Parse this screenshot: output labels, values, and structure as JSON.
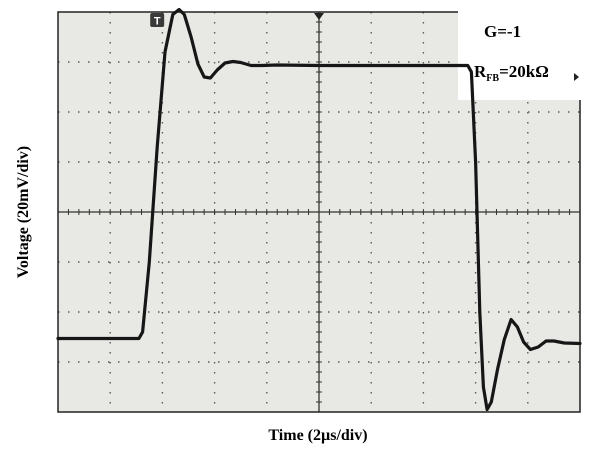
{
  "chart_data": {
    "type": "line",
    "title": "",
    "xlabel": "Time (2µs/div)",
    "ylabel": "Voltage (20mV/div)",
    "grid": true,
    "xlim": [
      0,
      10
    ],
    "ylim": [
      0,
      8
    ],
    "x_unit": "div",
    "y_unit": "div",
    "annotations": {
      "gain": "G=-1",
      "rfb_main": "R",
      "rfb_sub": "FB",
      "rfb_value": "=20kΩ",
      "trigger_marker": "T"
    },
    "colors": {
      "background": "#e8e9e4",
      "trace": "#161616",
      "grid": "#5a5a5a",
      "annotation_box": "#ffffff"
    },
    "series": [
      {
        "values": [
          [
            0.0,
            1.47
          ],
          [
            1.55,
            1.47
          ],
          [
            1.62,
            1.6
          ],
          [
            1.75,
            3.0
          ],
          [
            1.9,
            5.3
          ],
          [
            2.05,
            7.2
          ],
          [
            2.2,
            7.95
          ],
          [
            2.32,
            8.05
          ],
          [
            2.42,
            7.95
          ],
          [
            2.55,
            7.5
          ],
          [
            2.68,
            6.96
          ],
          [
            2.8,
            6.7
          ],
          [
            2.92,
            6.68
          ],
          [
            3.05,
            6.84
          ],
          [
            3.2,
            6.98
          ],
          [
            3.35,
            7.01
          ],
          [
            3.5,
            6.99
          ],
          [
            3.7,
            6.93
          ],
          [
            3.9,
            6.93
          ],
          [
            4.2,
            6.94
          ],
          [
            5.0,
            6.93
          ],
          [
            6.0,
            6.93
          ],
          [
            7.0,
            6.93
          ],
          [
            7.85,
            6.93
          ],
          [
            7.92,
            6.8
          ],
          [
            8.0,
            5.0
          ],
          [
            8.08,
            2.0
          ],
          [
            8.15,
            0.5
          ],
          [
            8.22,
            0.05
          ],
          [
            8.3,
            0.2
          ],
          [
            8.42,
            0.85
          ],
          [
            8.55,
            1.45
          ],
          [
            8.68,
            1.85
          ],
          [
            8.8,
            1.7
          ],
          [
            8.92,
            1.4
          ],
          [
            9.05,
            1.25
          ],
          [
            9.2,
            1.3
          ],
          [
            9.35,
            1.42
          ],
          [
            9.5,
            1.42
          ],
          [
            9.7,
            1.38
          ],
          [
            10.0,
            1.37
          ]
        ]
      }
    ]
  }
}
